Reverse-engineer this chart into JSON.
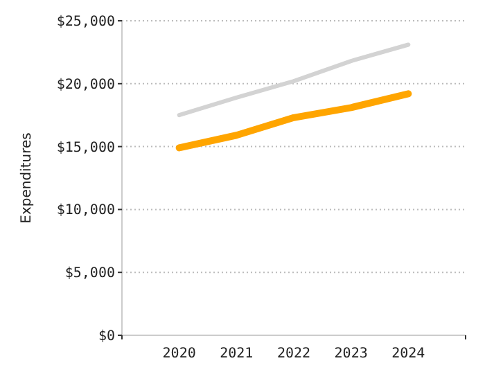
{
  "chart_data": {
    "type": "line",
    "ylabel": "Expenditures",
    "x": [
      2020,
      2021,
      2022,
      2023,
      2024
    ],
    "xlim": [
      2019,
      2025
    ],
    "xticks": [
      {
        "value": 2019,
        "label": null
      },
      2020,
      2021,
      2022,
      2023,
      2024,
      {
        "value": 2025,
        "label": null
      }
    ],
    "ylim": [
      0,
      25000
    ],
    "yticks": [
      {
        "value": 0,
        "label": "$0"
      },
      {
        "value": 5000,
        "label": "$5,000"
      },
      {
        "value": 10000,
        "label": "$10,000"
      },
      {
        "value": 15000,
        "label": "$15,000"
      },
      {
        "value": 20000,
        "label": "$20,000"
      },
      {
        "value": 25000,
        "label": "$25,000"
      }
    ],
    "grid": "y",
    "series": [
      {
        "color": "#d3d3d3",
        "values": [
          17500,
          18900,
          20200,
          21800,
          23100
        ]
      },
      {
        "color": "#ffa500",
        "values": [
          14900,
          15900,
          17300,
          18100,
          19200
        ]
      }
    ]
  }
}
